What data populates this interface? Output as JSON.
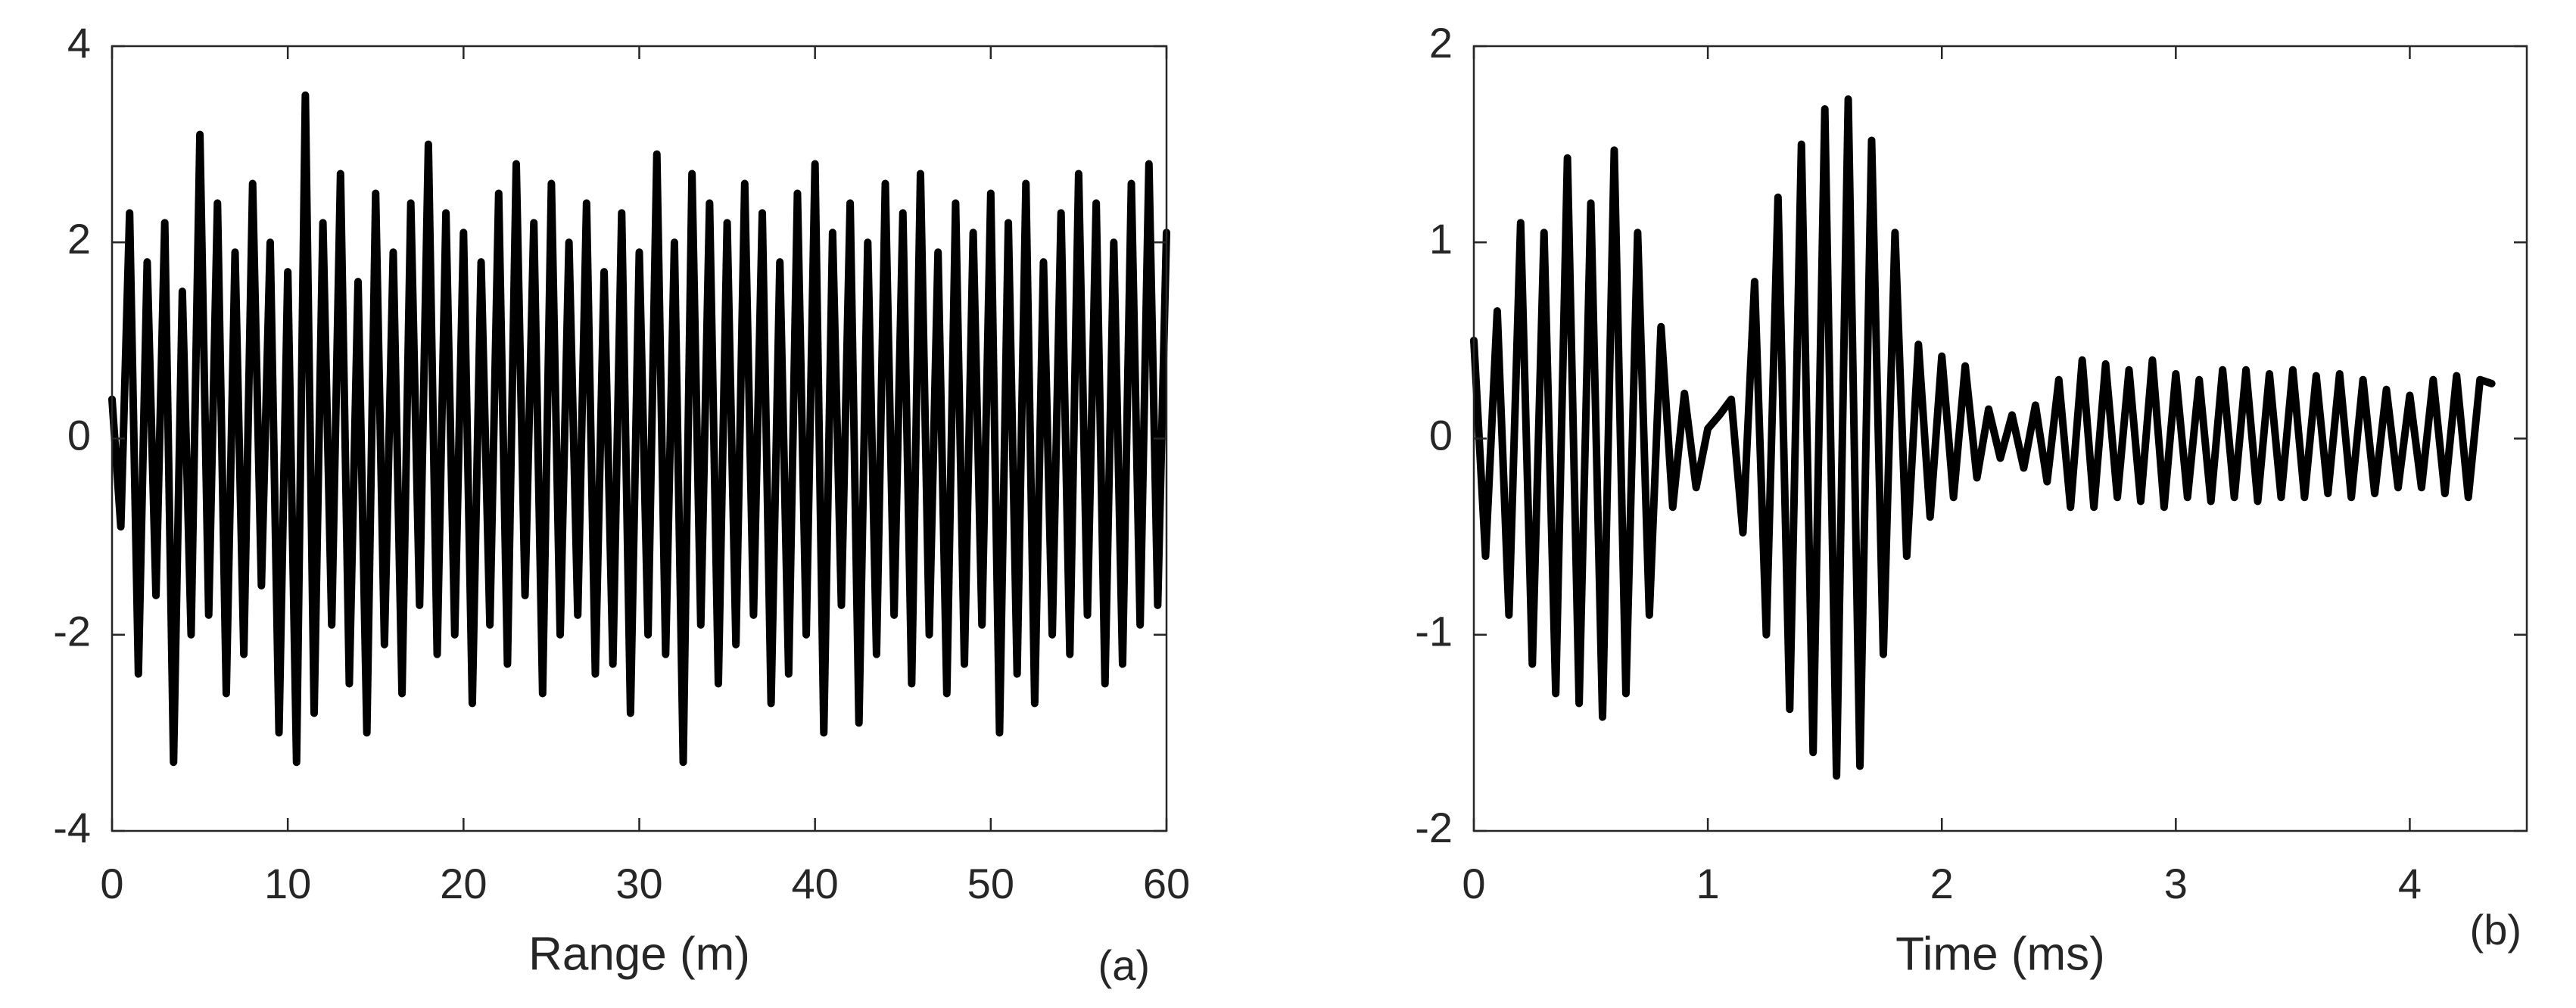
{
  "chart_data": [
    {
      "type": "line",
      "xlabel": "Range (m)",
      "annotation": "(a)",
      "color": "#000000",
      "xlim": [
        0,
        60
      ],
      "xticks": [
        0,
        10,
        20,
        30,
        40,
        50,
        60
      ],
      "ylim": [
        -4,
        4
      ],
      "yticks": [
        -4,
        -2,
        0,
        2,
        4
      ],
      "x": [
        0,
        0.5,
        1,
        1.5,
        2,
        2.5,
        3,
        3.5,
        4,
        4.5,
        5,
        5.5,
        6,
        6.5,
        7,
        7.5,
        8,
        8.5,
        9,
        9.5,
        10,
        10.5,
        11,
        11.5,
        12,
        12.5,
        13,
        13.5,
        14,
        14.5,
        15,
        15.5,
        16,
        16.5,
        17,
        17.5,
        18,
        18.5,
        19,
        19.5,
        20,
        20.5,
        21,
        21.5,
        22,
        22.5,
        23,
        23.5,
        24,
        24.5,
        25,
        25.5,
        26,
        26.5,
        27,
        27.5,
        28,
        28.5,
        29,
        29.5,
        30,
        30.5,
        31,
        31.5,
        32,
        32.5,
        33,
        33.5,
        34,
        34.5,
        35,
        35.5,
        36,
        36.5,
        37,
        37.5,
        38,
        38.5,
        39,
        39.5,
        40,
        40.5,
        41,
        41.5,
        42,
        42.5,
        43,
        43.5,
        44,
        44.5,
        45,
        45.5,
        46,
        46.5,
        47,
        47.5,
        48,
        48.5,
        49,
        49.5,
        50,
        50.5,
        51,
        51.5,
        52,
        52.5,
        53,
        53.5,
        54,
        54.5,
        55,
        55.5,
        56,
        56.5,
        57,
        57.5,
        58,
        58.5,
        59,
        59.5,
        60
      ],
      "values": [
        0.4,
        -0.9,
        2.3,
        -2.4,
        1.8,
        -1.6,
        2.2,
        -3.3,
        1.5,
        -2.0,
        3.1,
        -1.8,
        2.4,
        -2.6,
        1.9,
        -2.2,
        2.6,
        -1.5,
        2.0,
        -3.0,
        1.7,
        -3.3,
        3.5,
        -2.8,
        2.2,
        -1.9,
        2.7,
        -2.5,
        1.6,
        -3.0,
        2.5,
        -2.1,
        1.9,
        -2.6,
        2.4,
        -1.7,
        3.0,
        -2.2,
        2.3,
        -2.0,
        2.1,
        -2.7,
        1.8,
        -1.9,
        2.5,
        -2.3,
        2.8,
        -1.6,
        2.2,
        -2.6,
        2.6,
        -2.0,
        2.0,
        -1.8,
        2.4,
        -2.4,
        1.7,
        -2.3,
        2.3,
        -2.8,
        1.9,
        -2.0,
        2.9,
        -2.2,
        2.0,
        -3.3,
        2.7,
        -1.9,
        2.4,
        -2.5,
        2.2,
        -2.1,
        2.6,
        -1.8,
        2.3,
        -2.7,
        1.8,
        -2.4,
        2.5,
        -2.0,
        2.8,
        -3.0,
        2.1,
        -1.7,
        2.4,
        -2.9,
        2.0,
        -2.2,
        2.6,
        -1.8,
        2.3,
        -2.5,
        2.7,
        -2.0,
        1.9,
        -2.6,
        2.4,
        -2.3,
        2.1,
        -1.9,
        2.5,
        -3.0,
        2.2,
        -2.4,
        2.6,
        -2.7,
        1.8,
        -2.0,
        2.3,
        -2.2,
        2.7,
        -1.8,
        2.4,
        -2.5,
        2.0,
        -2.3,
        2.6,
        -1.9,
        2.8,
        -1.7,
        2.1
      ]
    },
    {
      "type": "line",
      "xlabel": "Time (ms)",
      "annotation": "(b)",
      "color": "#000000",
      "xlim": [
        0,
        4.5
      ],
      "xticks": [
        0,
        1,
        2,
        3,
        4
      ],
      "ylim": [
        -2,
        2
      ],
      "yticks": [
        -2,
        -1,
        0,
        1,
        2
      ],
      "x": [
        0,
        0.05,
        0.1,
        0.15,
        0.2,
        0.25,
        0.3,
        0.35,
        0.4,
        0.45,
        0.5,
        0.55,
        0.6,
        0.65,
        0.7,
        0.75,
        0.8,
        0.85,
        0.9,
        0.95,
        1,
        1.05,
        1.1,
        1.15,
        1.2,
        1.25,
        1.3,
        1.35,
        1.4,
        1.45,
        1.5,
        1.55,
        1.6,
        1.65,
        1.7,
        1.75,
        1.8,
        1.85,
        1.9,
        1.95,
        2,
        2.05,
        2.1,
        2.15,
        2.2,
        2.25,
        2.3,
        2.35,
        2.4,
        2.45,
        2.5,
        2.55,
        2.6,
        2.65,
        2.7,
        2.75,
        2.8,
        2.85,
        2.9,
        2.95,
        3,
        3.05,
        3.1,
        3.15,
        3.2,
        3.25,
        3.3,
        3.35,
        3.4,
        3.45,
        3.5,
        3.55,
        3.6,
        3.65,
        3.7,
        3.75,
        3.8,
        3.85,
        3.9,
        3.95,
        4,
        4.05,
        4.1,
        4.15,
        4.2,
        4.25,
        4.3,
        4.35
      ],
      "values": [
        0.5,
        -0.6,
        0.65,
        -0.9,
        1.1,
        -1.15,
        1.05,
        -1.3,
        1.43,
        -1.35,
        1.2,
        -1.42,
        1.47,
        -1.3,
        1.05,
        -0.9,
        0.57,
        -0.35,
        0.23,
        -0.25,
        0.05,
        0.12,
        0.2,
        -0.48,
        0.8,
        -1.0,
        1.23,
        -1.38,
        1.5,
        -1.6,
        1.68,
        -1.72,
        1.73,
        -1.67,
        1.52,
        -1.1,
        1.05,
        -0.6,
        0.48,
        -0.4,
        0.42,
        -0.3,
        0.37,
        -0.2,
        0.15,
        -0.1,
        0.12,
        -0.15,
        0.17,
        -0.22,
        0.3,
        -0.35,
        0.4,
        -0.35,
        0.38,
        -0.3,
        0.35,
        -0.32,
        0.4,
        -0.35,
        0.33,
        -0.3,
        0.3,
        -0.32,
        0.35,
        -0.3,
        0.35,
        -0.32,
        0.33,
        -0.3,
        0.35,
        -0.3,
        0.32,
        -0.28,
        0.33,
        -0.3,
        0.3,
        -0.28,
        0.25,
        -0.25,
        0.22,
        -0.25,
        0.3,
        -0.28,
        0.32,
        -0.3,
        0.3,
        0.28
      ]
    }
  ]
}
